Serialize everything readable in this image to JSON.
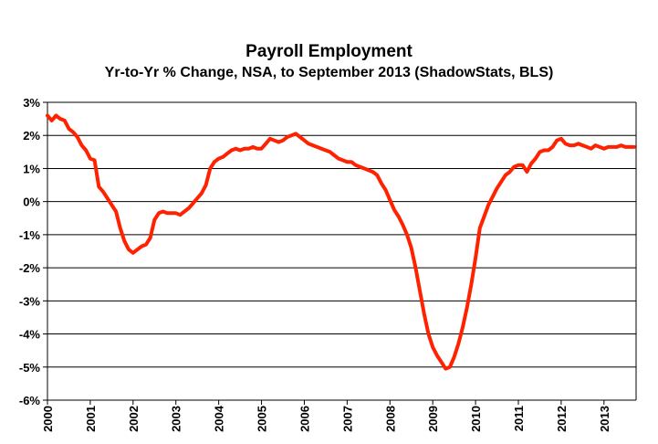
{
  "chart_data": {
    "type": "line",
    "title": "Payroll Employment",
    "subtitle": "Yr-to-Yr % Change, NSA, to September 2013 (ShadowStats, BLS)",
    "xlabel": "",
    "ylabel": "",
    "xlim": [
      2000.0,
      2013.75
    ],
    "ylim": [
      -6,
      3
    ],
    "yticks": [
      3,
      2,
      1,
      0,
      -1,
      -2,
      -3,
      -4,
      -5,
      -6
    ],
    "ytick_labels": [
      "3%",
      "2%",
      "1%",
      "0%",
      "-1%",
      "-2%",
      "-3%",
      "-4%",
      "-5%",
      "-6%"
    ],
    "xticks": [
      2000,
      2001,
      2002,
      2003,
      2004,
      2005,
      2006,
      2007,
      2008,
      2009,
      2010,
      2011,
      2012,
      2013
    ],
    "xtick_labels": [
      "2000",
      "2001",
      "2002",
      "2003",
      "2004",
      "2005",
      "2006",
      "2007",
      "2008",
      "2009",
      "2010",
      "2011",
      "2012",
      "2013"
    ],
    "grid": "horizontal",
    "colors": {
      "line": "#ff2200",
      "grid": "#000000",
      "axis": "#000000"
    },
    "series": [
      {
        "name": "",
        "x": [
          2000.0,
          2000.1,
          2000.2,
          2000.3,
          2000.4,
          2000.5,
          2000.6,
          2000.7,
          2000.8,
          2000.9,
          2001.0,
          2001.1,
          2001.2,
          2001.3,
          2001.4,
          2001.5,
          2001.6,
          2001.7,
          2001.8,
          2001.9,
          2002.0,
          2002.1,
          2002.2,
          2002.3,
          2002.4,
          2002.5,
          2002.6,
          2002.7,
          2002.8,
          2002.9,
          2003.0,
          2003.1,
          2003.2,
          2003.3,
          2003.4,
          2003.5,
          2003.6,
          2003.7,
          2003.8,
          2003.9,
          2004.0,
          2004.1,
          2004.2,
          2004.3,
          2004.4,
          2004.5,
          2004.6,
          2004.7,
          2004.8,
          2004.9,
          2005.0,
          2005.1,
          2005.2,
          2005.3,
          2005.4,
          2005.5,
          2005.6,
          2005.7,
          2005.8,
          2005.9,
          2006.0,
          2006.1,
          2006.2,
          2006.3,
          2006.4,
          2006.5,
          2006.6,
          2006.7,
          2006.8,
          2006.9,
          2007.0,
          2007.1,
          2007.2,
          2007.3,
          2007.4,
          2007.5,
          2007.6,
          2007.7,
          2007.8,
          2007.9,
          2008.0,
          2008.1,
          2008.2,
          2008.3,
          2008.4,
          2008.5,
          2008.6,
          2008.7,
          2008.8,
          2008.9,
          2009.0,
          2009.1,
          2009.2,
          2009.3,
          2009.4,
          2009.5,
          2009.6,
          2009.7,
          2009.8,
          2009.9,
          2010.0,
          2010.1,
          2010.2,
          2010.3,
          2010.4,
          2010.5,
          2010.6,
          2010.7,
          2010.8,
          2010.9,
          2011.0,
          2011.1,
          2011.2,
          2011.3,
          2011.4,
          2011.5,
          2011.6,
          2011.7,
          2011.8,
          2011.9,
          2012.0,
          2012.1,
          2012.2,
          2012.3,
          2012.4,
          2012.5,
          2012.6,
          2012.7,
          2012.8,
          2012.9,
          2013.0,
          2013.1,
          2013.2,
          2013.3,
          2013.4,
          2013.5,
          2013.6,
          2013.7
        ],
        "values": [
          2.6,
          2.45,
          2.6,
          2.5,
          2.45,
          2.2,
          2.1,
          1.95,
          1.7,
          1.55,
          1.3,
          1.25,
          0.45,
          0.3,
          0.1,
          -0.1,
          -0.3,
          -0.8,
          -1.2,
          -1.45,
          -1.55,
          -1.45,
          -1.35,
          -1.3,
          -1.1,
          -0.55,
          -0.35,
          -0.3,
          -0.35,
          -0.35,
          -0.35,
          -0.4,
          -0.3,
          -0.2,
          -0.05,
          0.1,
          0.25,
          0.5,
          1.0,
          1.2,
          1.3,
          1.35,
          1.45,
          1.55,
          1.6,
          1.55,
          1.6,
          1.6,
          1.65,
          1.6,
          1.6,
          1.75,
          1.9,
          1.85,
          1.8,
          1.85,
          1.95,
          2.0,
          2.05,
          1.95,
          1.85,
          1.75,
          1.7,
          1.65,
          1.6,
          1.55,
          1.5,
          1.4,
          1.3,
          1.25,
          1.2,
          1.2,
          1.1,
          1.05,
          1.0,
          0.95,
          0.9,
          0.8,
          0.55,
          0.35,
          0.05,
          -0.25,
          -0.45,
          -0.7,
          -1.0,
          -1.4,
          -2.0,
          -2.7,
          -3.4,
          -4.0,
          -4.4,
          -4.65,
          -4.85,
          -5.05,
          -5.0,
          -4.7,
          -4.3,
          -3.8,
          -3.2,
          -2.5,
          -1.7,
          -0.8,
          -0.45,
          -0.1,
          0.15,
          0.4,
          0.6,
          0.8,
          0.9,
          1.05,
          1.1,
          1.1,
          0.9,
          1.15,
          1.3,
          1.5,
          1.55,
          1.55,
          1.65,
          1.85,
          1.9,
          1.75,
          1.7,
          1.7,
          1.75,
          1.7,
          1.65,
          1.6,
          1.7,
          1.65,
          1.6,
          1.65,
          1.65,
          1.65,
          1.7,
          1.65,
          1.65,
          1.65
        ]
      }
    ]
  }
}
